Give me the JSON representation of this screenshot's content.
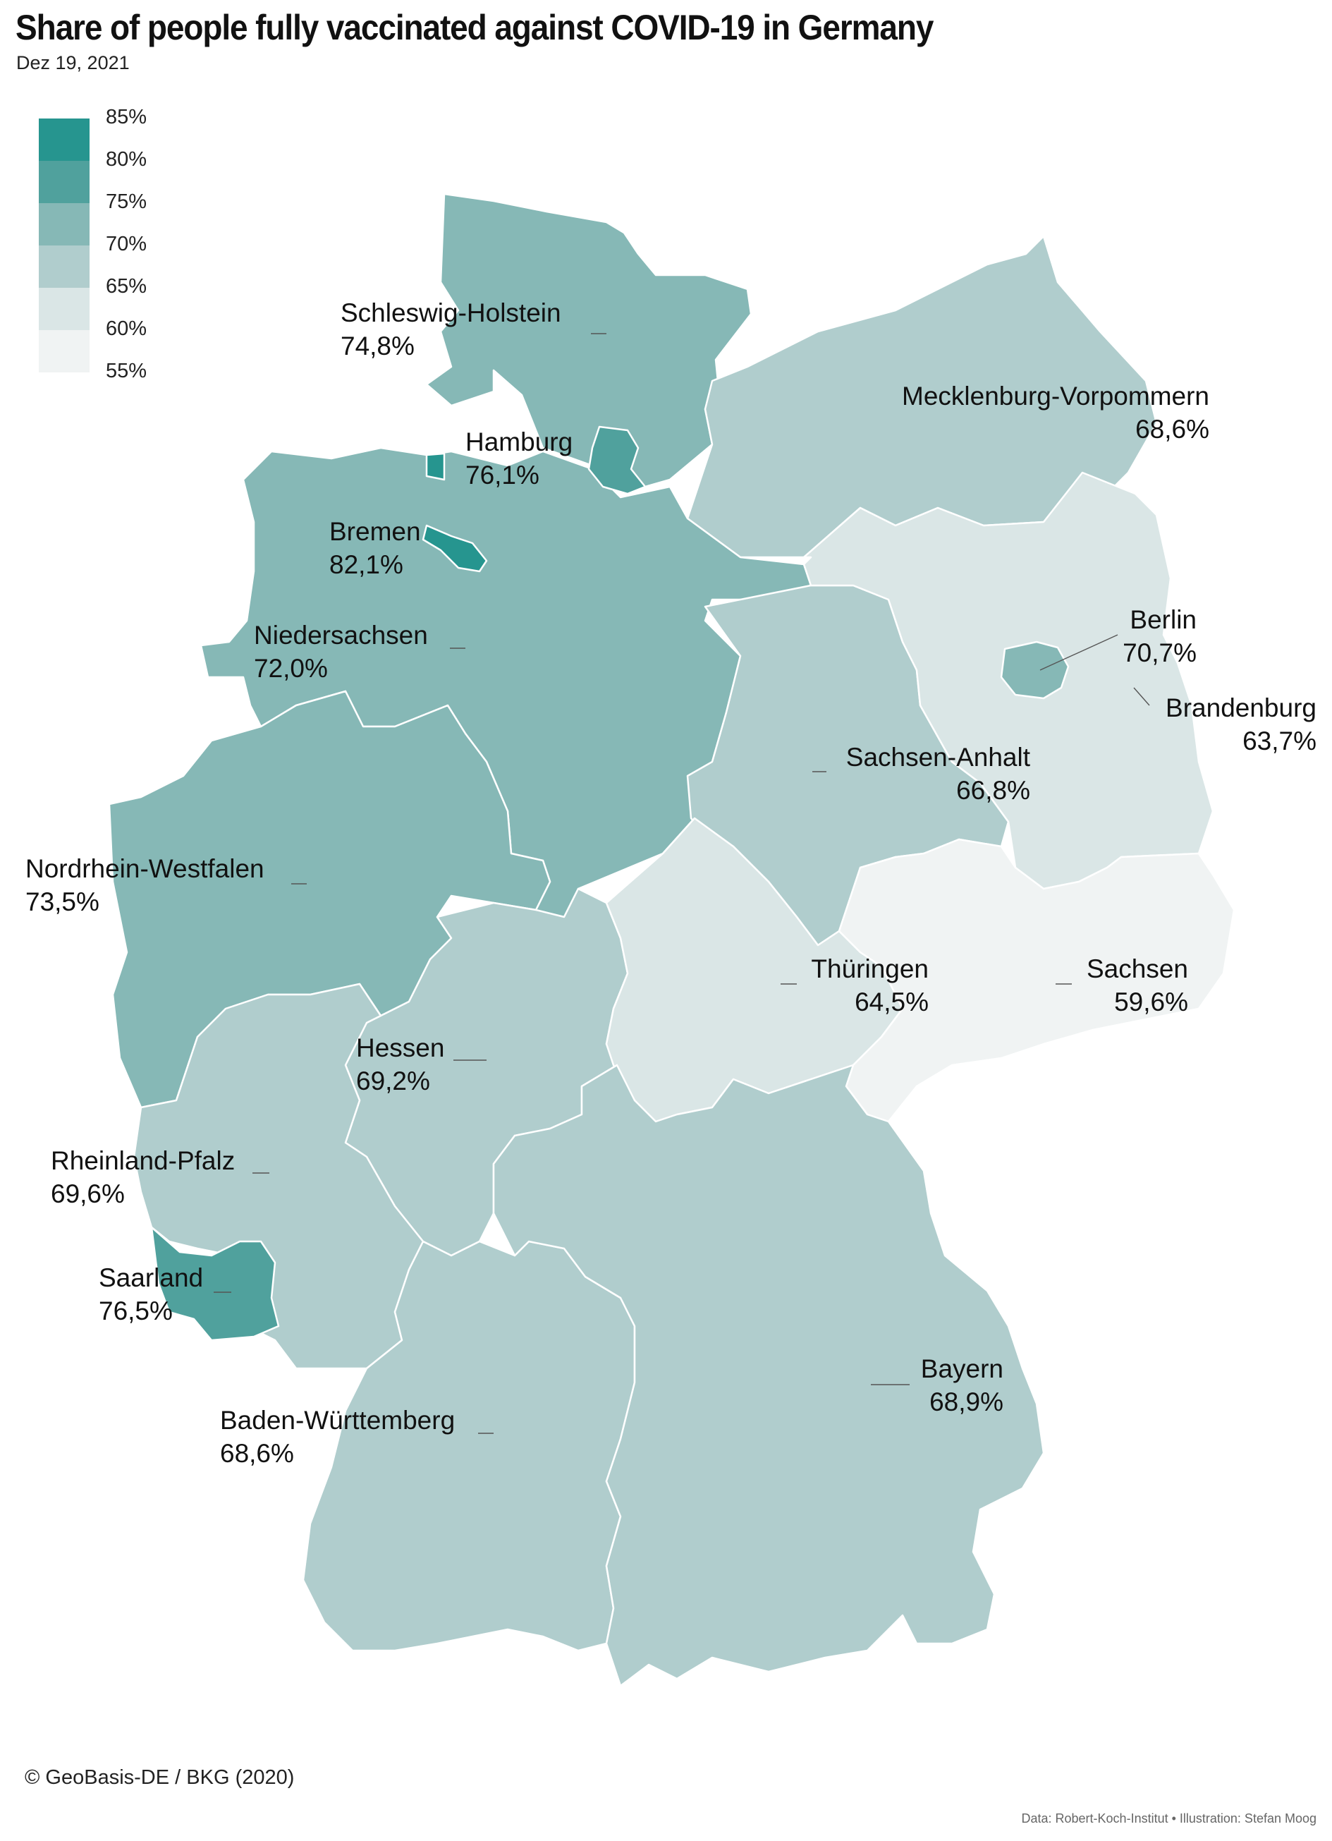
{
  "header": {
    "title": "Share of people fully vaccinated against COVID-19 in Germany",
    "date": "Dez 19, 2021"
  },
  "legend": {
    "colors": [
      "#26958f",
      "#50a19d",
      "#86b8b6",
      "#b0cdcd",
      "#dae6e6",
      "#f0f3f3"
    ],
    "labels": [
      "85%",
      "80%",
      "75%",
      "70%",
      "65%",
      "60%",
      "55%"
    ]
  },
  "map_data": {
    "type": "choropleth",
    "bins": [
      55,
      60,
      65,
      70,
      75,
      80,
      85
    ],
    "regions": [
      {
        "key": "sh",
        "name": "Schleswig-Holstein",
        "value_label": "74,8%",
        "value": 74.8
      },
      {
        "key": "hh",
        "name": "Hamburg",
        "value_label": "76,1%",
        "value": 76.1
      },
      {
        "key": "hb",
        "name": "Bremen",
        "value_label": "82,1%",
        "value": 82.1
      },
      {
        "key": "mv",
        "name": "Mecklenburg-Vorpommern",
        "value_label": "68,6%",
        "value": 68.6
      },
      {
        "key": "ni",
        "name": "Niedersachsen",
        "value_label": "72,0%",
        "value": 72.0
      },
      {
        "key": "be",
        "name": "Berlin",
        "value_label": "70,7%",
        "value": 70.7
      },
      {
        "key": "bb",
        "name": "Brandenburg",
        "value_label": "63,7%",
        "value": 63.7
      },
      {
        "key": "st",
        "name": "Sachsen-Anhalt",
        "value_label": "66,8%",
        "value": 66.8
      },
      {
        "key": "nw",
        "name": "Nordrhein-Westfalen",
        "value_label": "73,5%",
        "value": 73.5
      },
      {
        "key": "th",
        "name": "Thüringen",
        "value_label": "64,5%",
        "value": 64.5
      },
      {
        "key": "sn",
        "name": "Sachsen",
        "value_label": "59,6%",
        "value": 59.6
      },
      {
        "key": "he",
        "name": "Hessen",
        "value_label": "69,2%",
        "value": 69.2
      },
      {
        "key": "rp",
        "name": "Rheinland-Pfalz",
        "value_label": "69,6%",
        "value": 69.6
      },
      {
        "key": "sl",
        "name": "Saarland",
        "value_label": "76,5%",
        "value": 76.5
      },
      {
        "key": "by",
        "name": "Bayern",
        "value_label": "68,9%",
        "value": 68.9
      },
      {
        "key": "bw",
        "name": "Baden-Württemberg",
        "value_label": "68,6%",
        "value": 68.6
      }
    ]
  },
  "footer": {
    "credit": "© GeoBasis-DE / BKG (2020)",
    "source": "Data: Robert-Koch-Institut • Illustration: Stefan Moog"
  }
}
